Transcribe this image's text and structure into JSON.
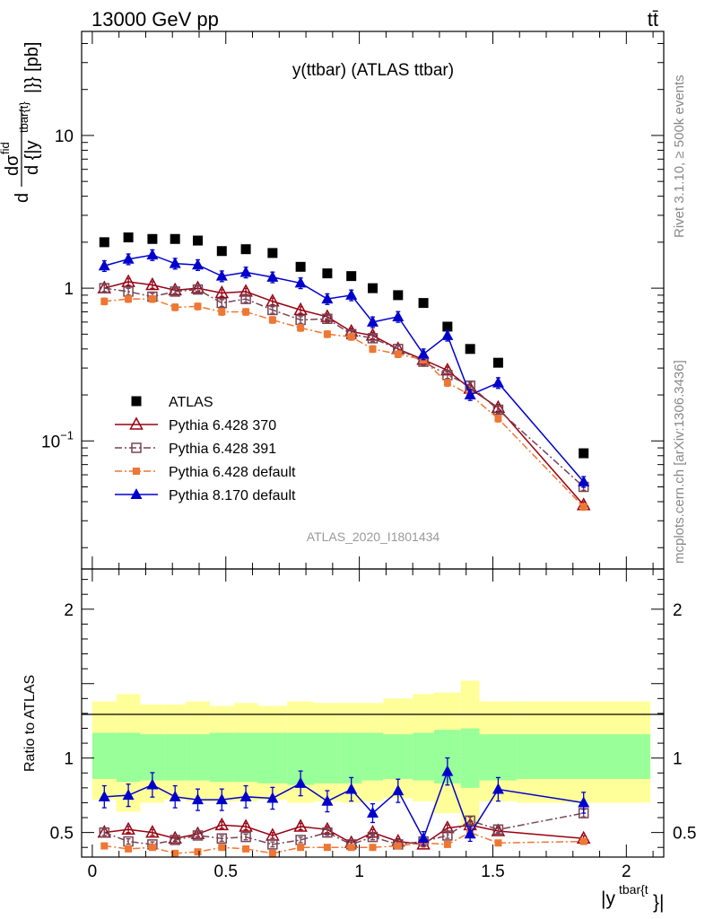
{
  "header": {
    "energy": "13000 GeV pp",
    "process": "tt̄"
  },
  "side_labels": {
    "rivet": "Rivet 3.1.10, ≥ 500k events",
    "mcplots": "mcplots.cern.ch [arXiv:1306.3436]"
  },
  "chart_data": [
    {
      "type": "scatter",
      "title": "y(ttbar) (ATLAS ttbar)",
      "analysis": "ATLAS_2020_I1801434",
      "ylabel": "d σ^fid / d {|y^tbar{t}|} [pb]",
      "xlabel": "|y^tbar{t}|",
      "xlim": [
        -0.04,
        2.14
      ],
      "ylim": [
        0.0145,
        48
      ],
      "yscale": "log",
      "yticks": [
        {
          "v": 0.1,
          "label": "10^-1"
        },
        {
          "v": 1,
          "label": "1"
        },
        {
          "v": 10,
          "label": "10"
        }
      ],
      "legend_position": "lower-left",
      "x": [
        0.045,
        0.135,
        0.225,
        0.31,
        0.395,
        0.485,
        0.575,
        0.675,
        0.78,
        0.88,
        0.97,
        1.05,
        1.145,
        1.24,
        1.33,
        1.415,
        1.52,
        1.84
      ],
      "series": [
        {
          "name": "ATLAS",
          "color": "#000000",
          "marker": "square-filled",
          "line": "none",
          "values": [
            2.0,
            2.15,
            2.1,
            2.1,
            2.05,
            1.75,
            1.8,
            1.7,
            1.38,
            1.25,
            1.2,
            1.0,
            0.9,
            0.8,
            0.56,
            0.4,
            0.325,
            0.083
          ]
        },
        {
          "name": "Pythia 6.428 370",
          "color": "#990011",
          "marker": "triangle-open",
          "line": "solid",
          "values": [
            1.0,
            1.1,
            1.05,
            0.97,
            1.0,
            0.93,
            0.95,
            0.82,
            0.72,
            0.65,
            0.52,
            0.49,
            0.4,
            0.34,
            0.29,
            0.22,
            0.165,
            0.038
          ]
        },
        {
          "name": "Pythia 6.428 391",
          "color": "#774455",
          "marker": "square-open",
          "line": "dashdot",
          "values": [
            1.0,
            0.95,
            0.88,
            0.95,
            0.98,
            0.8,
            0.85,
            0.72,
            0.62,
            0.63,
            0.5,
            0.47,
            0.4,
            0.33,
            0.27,
            0.23,
            0.16,
            0.05
          ]
        },
        {
          "name": "Pythia 6.428 default",
          "color": "#ee7733",
          "marker": "square-filled-small",
          "line": "dashdot",
          "values": [
            0.82,
            0.85,
            0.85,
            0.75,
            0.76,
            0.7,
            0.7,
            0.62,
            0.55,
            0.5,
            0.48,
            0.4,
            0.37,
            0.34,
            0.24,
            0.2,
            0.14,
            0.037
          ]
        },
        {
          "name": "Pythia 8.170 default",
          "color": "#0000cc",
          "marker": "triangle-filled",
          "line": "solid",
          "values": [
            1.4,
            1.55,
            1.65,
            1.45,
            1.42,
            1.2,
            1.27,
            1.18,
            1.08,
            0.85,
            0.9,
            0.6,
            0.65,
            0.37,
            0.49,
            0.2,
            0.24,
            0.054
          ]
        }
      ]
    },
    {
      "type": "scatter",
      "ylabel": "Ratio to ATLAS",
      "ylim": [
        0.335,
        2.27
      ],
      "yticks": [
        {
          "v": 0.5,
          "label": "0.5"
        },
        {
          "v": 1,
          "label": "1"
        },
        {
          "v": 2,
          "label": "2"
        }
      ],
      "xticks": [
        {
          "v": 0,
          "label": "0"
        },
        {
          "v": 0.5,
          "label": "0.5"
        },
        {
          "v": 1,
          "label": "1"
        },
        {
          "v": 1.5,
          "label": "1.5"
        },
        {
          "v": 2,
          "label": "2"
        }
      ],
      "band_edges": [
        0,
        0.09,
        0.18,
        0.27,
        0.35,
        0.44,
        0.53,
        0.62,
        0.73,
        0.83,
        0.93,
        1.01,
        1.09,
        1.2,
        1.28,
        1.38,
        1.45,
        1.59,
        2.09
      ],
      "band_outer": [
        [
          0.72,
          1.38
        ],
        [
          0.64,
          1.43
        ],
        [
          0.7,
          1.36
        ],
        [
          0.72,
          1.36
        ],
        [
          0.71,
          1.38
        ],
        [
          0.71,
          1.35
        ],
        [
          0.71,
          1.37
        ],
        [
          0.72,
          1.35
        ],
        [
          0.7,
          1.38
        ],
        [
          0.71,
          1.37
        ],
        [
          0.7,
          1.37
        ],
        [
          0.71,
          1.37
        ],
        [
          0.73,
          1.4
        ],
        [
          0.71,
          1.43
        ],
        [
          0.63,
          1.44
        ],
        [
          0.55,
          1.52
        ],
        [
          0.71,
          1.38
        ],
        [
          0.7,
          1.38
        ]
      ],
      "band_inner": [
        [
          0.86,
          1.17
        ],
        [
          0.84,
          1.17
        ],
        [
          0.85,
          1.16
        ],
        [
          0.85,
          1.16
        ],
        [
          0.85,
          1.16
        ],
        [
          0.84,
          1.17
        ],
        [
          0.84,
          1.17
        ],
        [
          0.83,
          1.17
        ],
        [
          0.82,
          1.17
        ],
        [
          0.83,
          1.17
        ],
        [
          0.83,
          1.17
        ],
        [
          0.85,
          1.17
        ],
        [
          0.86,
          1.16
        ],
        [
          0.85,
          1.17
        ],
        [
          0.83,
          1.19
        ],
        [
          0.8,
          1.2
        ],
        [
          0.85,
          1.16
        ],
        [
          0.86,
          1.16
        ]
      ],
      "x": [
        0.045,
        0.135,
        0.225,
        0.31,
        0.395,
        0.485,
        0.575,
        0.675,
        0.78,
        0.88,
        0.97,
        1.05,
        1.145,
        1.24,
        1.33,
        1.415,
        1.52,
        1.84
      ],
      "series": [
        {
          "name": "Pythia 6.428 370",
          "color": "#990011",
          "marker": "triangle-open",
          "line": "solid",
          "values": [
            0.5,
            0.52,
            0.5,
            0.46,
            0.49,
            0.55,
            0.54,
            0.48,
            0.54,
            0.52,
            0.43,
            0.5,
            0.44,
            0.42,
            0.53,
            0.55,
            0.51,
            0.46
          ]
        },
        {
          "name": "Pythia 6.428 391",
          "color": "#774455",
          "marker": "square-open",
          "line": "dashdot",
          "values": [
            0.5,
            0.44,
            0.42,
            0.45,
            0.48,
            0.46,
            0.47,
            0.42,
            0.45,
            0.5,
            0.42,
            0.47,
            0.42,
            0.44,
            0.48,
            0.58,
            0.52,
            0.63
          ]
        },
        {
          "name": "Pythia 6.428 default",
          "color": "#ee7733",
          "marker": "square-filled-small",
          "line": "dashdot",
          "values": [
            0.41,
            0.39,
            0.4,
            0.36,
            0.37,
            0.4,
            0.39,
            0.36,
            0.4,
            0.4,
            0.4,
            0.4,
            0.41,
            0.43,
            0.42,
            0.5,
            0.43,
            0.44
          ]
        },
        {
          "name": "Pythia 8.170 default",
          "color": "#0000cc",
          "marker": "triangle-filled",
          "line": "solid",
          "values": [
            0.74,
            0.75,
            0.82,
            0.74,
            0.72,
            0.72,
            0.74,
            0.73,
            0.83,
            0.71,
            0.79,
            0.63,
            0.78,
            0.46,
            0.91,
            0.49,
            0.79,
            0.7
          ]
        }
      ]
    }
  ]
}
